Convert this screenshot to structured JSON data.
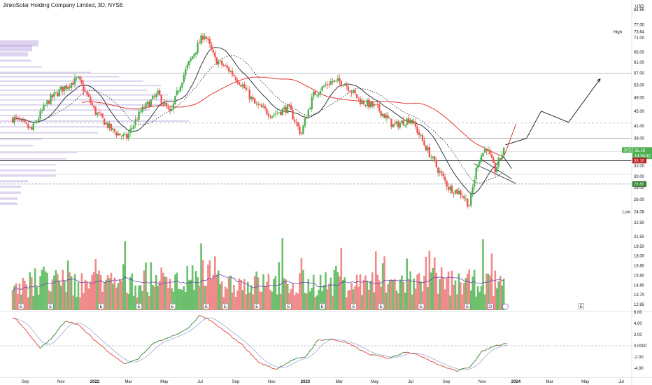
{
  "title": "JinkoSolar Holding Company Limited, 3D, NYSE",
  "currency": "USD",
  "symbol": "JKS",
  "colors": {
    "up": "#26a69a",
    "up_volume": "#4caf50",
    "down": "#ef5350",
    "volume_down": "#f08a8a",
    "volume_up": "#6cbf6c",
    "profile": "#b39ddb",
    "sma_red": "#e53935",
    "sma_black": "#1e222d",
    "osc_green": "#2e7d32",
    "osc_red": "#e53935",
    "osc_signal": "#9fa8da",
    "hline": "#9598a1",
    "badge_red": "#b71c1c",
    "badge_green": "#2e7d32"
  },
  "chart_data": [
    {
      "type": "candlestick",
      "name": "price",
      "title": "JinkoSolar Holding Company Limited, 3D, NYSE",
      "x_ticks": [
        "Sep",
        "Nov",
        "2022",
        "Mar",
        "May",
        "Jul",
        "Sep",
        "Nov",
        "2023",
        "Mar",
        "May",
        "Jul",
        "Sep",
        "Nov",
        "2024",
        "Mar",
        "May",
        "Jul"
      ],
      "y_ticks": [
        "84.55",
        "77.00",
        "73.64",
        "71.00",
        "65.00",
        "61.00",
        "57.00",
        "53.00",
        "49.00",
        "45.00",
        "41.00",
        "38.00",
        "35.19",
        "32.00",
        "30.00",
        "28.00",
        "26.00",
        "24.08",
        "22.50"
      ],
      "y_range": [
        22.5,
        84.55
      ],
      "high_label": "High",
      "high_value": "73.64",
      "low_label": "Low",
      "low_value": "24.08",
      "last_price": "35.19",
      "last_time": "14:54:42",
      "levels": [
        "33.10",
        "28.60"
      ],
      "horizontal_lines": [
        57.0,
        38.0,
        33.1,
        28.6
      ],
      "projection_path": [
        [
          2023.95,
          36.5
        ],
        [
          2024.05,
          38.0
        ],
        [
          2024.12,
          45.0
        ],
        [
          2024.25,
          42.0
        ],
        [
          2024.4,
          55.0
        ]
      ],
      "series": [
        {
          "name": "JKS",
          "style": "candles"
        },
        {
          "name": "",
          "style": "sma",
          "color": "#1e222d"
        },
        {
          "name": "",
          "style": "sma",
          "color": "#e53935"
        },
        {
          "name": "",
          "style": "dotted"
        }
      ],
      "price_path": [
        [
          2021.62,
          43.0
        ],
        [
          2021.7,
          40.0
        ],
        [
          2021.78,
          48.0
        ],
        [
          2021.85,
          52.0
        ],
        [
          2021.92,
          55.0
        ],
        [
          2022.0,
          45.0
        ],
        [
          2022.08,
          40.0
        ],
        [
          2022.15,
          38.0
        ],
        [
          2022.22,
          45.0
        ],
        [
          2022.3,
          50.0
        ],
        [
          2022.36,
          44.0
        ],
        [
          2022.42,
          56.0
        ],
        [
          2022.48,
          66.0
        ],
        [
          2022.52,
          73.0
        ],
        [
          2022.57,
          62.0
        ],
        [
          2022.64,
          58.0
        ],
        [
          2022.7,
          53.0
        ],
        [
          2022.76,
          47.0
        ],
        [
          2022.84,
          44.0
        ],
        [
          2022.92,
          46.0
        ],
        [
          2022.98,
          39.0
        ],
        [
          2023.04,
          50.0
        ],
        [
          2023.12,
          54.0
        ],
        [
          2023.18,
          54.0
        ],
        [
          2023.26,
          48.0
        ],
        [
          2023.34,
          46.0
        ],
        [
          2023.42,
          41.0
        ],
        [
          2023.5,
          43.0
        ],
        [
          2023.56,
          37.0
        ],
        [
          2023.62,
          32.0
        ],
        [
          2023.68,
          28.0
        ],
        [
          2023.74,
          27.0
        ],
        [
          2023.78,
          25.0
        ],
        [
          2023.82,
          33.0
        ],
        [
          2023.86,
          36.0
        ],
        [
          2023.9,
          31.0
        ],
        [
          2023.94,
          35.19
        ]
      ]
    },
    {
      "type": "bar",
      "name": "volume",
      "note_markers": [
        "E",
        "E",
        "E",
        "E",
        "E",
        "E",
        "E",
        "E",
        "E",
        "E",
        "E",
        "E",
        "E",
        "E",
        "D",
        "E"
      ],
      "y_ticks": [
        "21.50",
        "19.50",
        "18.00",
        "16.80",
        "15.60",
        "14.60",
        "13.70",
        "12.85"
      ]
    },
    {
      "type": "line",
      "name": "oscillator",
      "y_ticks": [
        "6.00",
        "4.00",
        "2.00",
        "0.0000",
        "-2.00",
        "-4.00"
      ],
      "y_range": [
        -5.5,
        6.0
      ],
      "points": [
        [
          2021.62,
          5.0
        ],
        [
          2021.68,
          2.5
        ],
        [
          2021.74,
          -0.5
        ],
        [
          2021.8,
          1.5
        ],
        [
          2021.86,
          4.5
        ],
        [
          2021.92,
          3.8
        ],
        [
          2022.0,
          1.0
        ],
        [
          2022.08,
          -1.5
        ],
        [
          2022.14,
          -3.2
        ],
        [
          2022.2,
          -2.5
        ],
        [
          2022.28,
          0.5
        ],
        [
          2022.36,
          1.5
        ],
        [
          2022.44,
          3.0
        ],
        [
          2022.5,
          5.5
        ],
        [
          2022.56,
          4.2
        ],
        [
          2022.62,
          2.5
        ],
        [
          2022.7,
          0.2
        ],
        [
          2022.78,
          -3.0
        ],
        [
          2022.86,
          -4.2
        ],
        [
          2022.94,
          -2.5
        ],
        [
          2023.0,
          -2.0
        ],
        [
          2023.06,
          1.0
        ],
        [
          2023.12,
          1.2
        ],
        [
          2023.2,
          0.5
        ],
        [
          2023.3,
          -1.5
        ],
        [
          2023.4,
          -2.2
        ],
        [
          2023.48,
          -1.0
        ],
        [
          2023.56,
          -2.0
        ],
        [
          2023.64,
          -3.5
        ],
        [
          2023.72,
          -4.5
        ],
        [
          2023.78,
          -3.8
        ],
        [
          2023.84,
          -1.0
        ],
        [
          2023.9,
          0.0
        ],
        [
          2023.96,
          0.5
        ]
      ]
    }
  ]
}
